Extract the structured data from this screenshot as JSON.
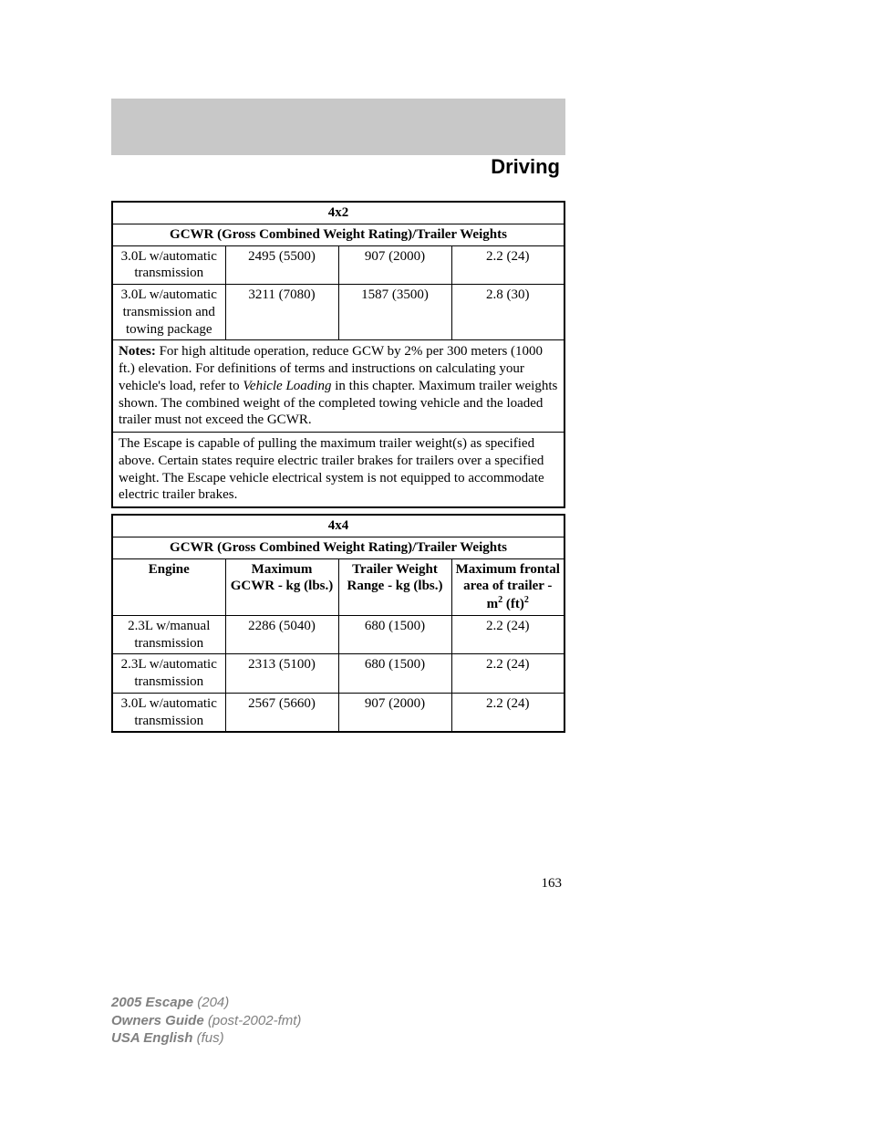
{
  "header": {
    "title": "Driving"
  },
  "table_4x2": {
    "title": "4x2",
    "subtitle": "GCWR (Gross Combined Weight Rating)/Trailer Weights",
    "rows": [
      {
        "engine": "3.0L w/automatic transmission",
        "gcwr": "2495 (5500)",
        "trailer": "907 (2000)",
        "frontal": "2.2 (24)"
      },
      {
        "engine": "3.0L w/automatic transmission and towing package",
        "gcwr": "3211 (7080)",
        "trailer": "1587 (3500)",
        "frontal": "2.8 (30)"
      }
    ],
    "notes_label": "Notes:",
    "notes_text": " For high altitude operation, reduce GCW by 2% per 300 meters (1000 ft.) elevation. For definitions of terms and instructions on calculating your vehicle's load, refer to ",
    "notes_italic": "Vehicle Loading",
    "notes_text2": " in this chapter. Maximum trailer weights shown. The combined weight of the completed towing vehicle and the loaded trailer must not exceed the GCWR.",
    "escape_text": "The Escape is capable of pulling the maximum trailer weight(s) as specified above. Certain states require electric trailer brakes for trailers over a specified weight. The Escape vehicle electrical system is not equipped to accommodate electric trailer brakes."
  },
  "table_4x4": {
    "title": "4x4",
    "subtitle": "GCWR (Gross Combined Weight Rating)/Trailer Weights",
    "headers": {
      "engine": "Engine",
      "gcwr": "Maximum GCWR - kg (lbs.)",
      "trailer": "Trailer Weight Range - kg (lbs.)",
      "frontal1": "Maximum frontal area of trailer - m",
      "frontal_sup": "2",
      "frontal2": " (ft)",
      "frontal_sup2": "2"
    },
    "rows": [
      {
        "engine": "2.3L w/manual transmission",
        "gcwr": "2286 (5040)",
        "trailer": "680 (1500)",
        "frontal": "2.2 (24)"
      },
      {
        "engine": "2.3L w/automatic transmission",
        "gcwr": "2313 (5100)",
        "trailer": "680 (1500)",
        "frontal": "2.2 (24)"
      },
      {
        "engine": "3.0L w/automatic transmission",
        "gcwr": "2567 (5660)",
        "trailer": "907 (2000)",
        "frontal": "2.2 (24)"
      }
    ]
  },
  "page_number": "163",
  "footer": {
    "line1_bold": "2005 Escape ",
    "line1_italic": "(204)",
    "line2_bold": "Owners Guide ",
    "line2_italic": "(post-2002-fmt)",
    "line3_bold": "USA English ",
    "line3_italic": "(fus)"
  }
}
